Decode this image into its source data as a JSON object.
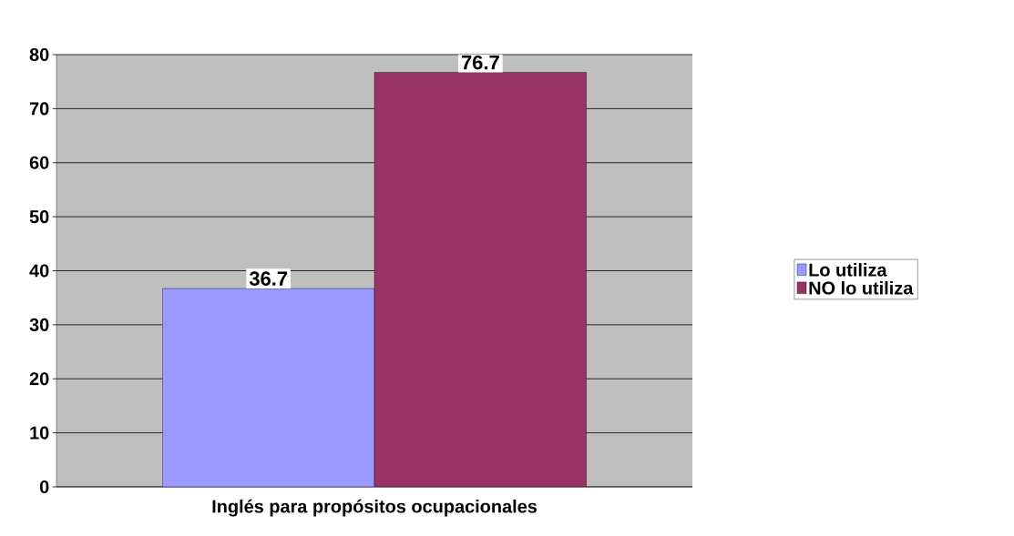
{
  "chart_data": {
    "type": "bar",
    "categories": [
      "Inglés para propósitos ocupacionales"
    ],
    "series": [
      {
        "name": "Lo utiliza",
        "color": "#9999ff",
        "values": [
          36.7
        ]
      },
      {
        "name": "NO lo utiliza",
        "color": "#993366",
        "values": [
          76.7
        ]
      }
    ],
    "ylim": [
      0,
      80
    ],
    "yticks": [
      0,
      10,
      20,
      30,
      40,
      50,
      60,
      70,
      80
    ],
    "grid": "y",
    "legend": "right",
    "data_labels": true
  }
}
